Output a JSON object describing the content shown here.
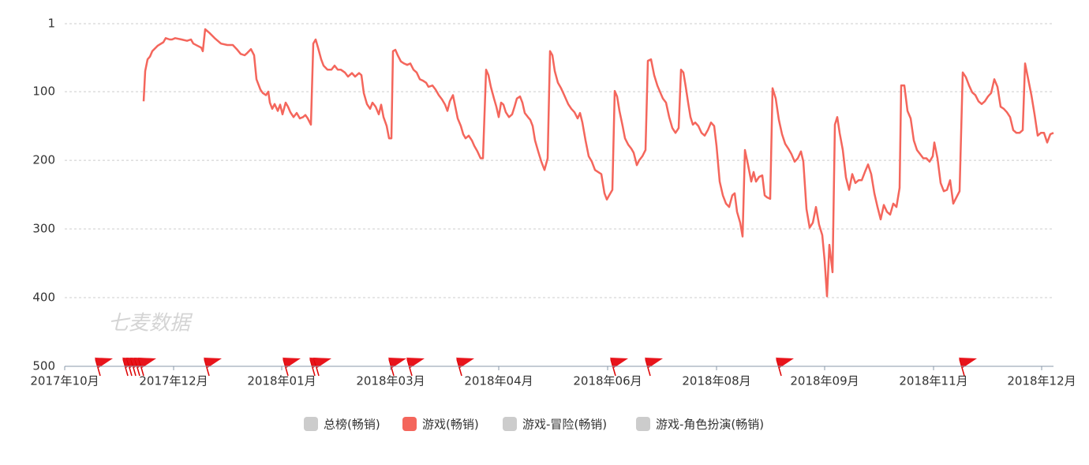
{
  "chart_data": {
    "type": "line",
    "watermark": "七麦数据",
    "y_inverted": true,
    "ylim": [
      1,
      500
    ],
    "yticks": [
      1,
      100,
      200,
      300,
      400,
      500
    ],
    "xlim": [
      0,
      1253
    ],
    "xticks": [
      {
        "value": 0,
        "label": "2017年10月"
      },
      {
        "value": 138,
        "label": "2017年12月"
      },
      {
        "value": 275,
        "label": "2018年01月"
      },
      {
        "value": 413,
        "label": "2018年03月"
      },
      {
        "value": 550,
        "label": "2018年04月"
      },
      {
        "value": 688,
        "label": "2018年06月"
      },
      {
        "value": 826,
        "label": "2018年08月"
      },
      {
        "value": 963,
        "label": "2018年09月"
      },
      {
        "value": 1101,
        "label": "2018年11月"
      },
      {
        "value": 1238,
        "label": "2018年12月"
      }
    ],
    "grid": true,
    "legend": "bottom",
    "x": [
      100,
      102,
      105,
      108,
      111,
      118,
      125,
      128,
      133,
      136,
      140,
      148,
      155,
      160,
      163,
      168,
      173,
      175,
      178,
      183,
      190,
      198,
      206,
      213,
      218,
      223,
      228,
      231,
      236,
      240,
      243,
      248,
      251,
      255,
      258,
      260,
      263,
      266,
      270,
      273,
      276,
      280,
      283,
      286,
      290,
      294,
      298,
      302,
      305,
      308,
      312,
      315,
      318,
      321,
      325,
      328,
      333,
      338,
      342,
      346,
      350,
      355,
      359,
      364,
      368,
      373,
      376,
      379,
      383,
      387,
      390,
      394,
      398,
      401,
      404,
      408,
      411,
      414,
      416,
      419,
      422,
      426,
      430,
      434,
      438,
      442,
      446,
      450,
      454,
      458,
      461,
      466,
      470,
      474,
      478,
      482,
      485,
      488,
      492,
      495,
      498,
      502,
      505,
      508,
      512,
      516,
      519,
      523,
      527,
      530,
      534,
      537,
      540,
      544,
      547,
      550,
      553,
      556,
      559,
      563,
      567,
      570,
      573,
      577,
      580,
      583,
      587,
      590,
      593,
      596,
      600,
      604,
      608,
      612,
      615,
      618,
      621,
      625,
      629,
      633,
      638,
      642,
      646,
      650,
      653,
      656,
      660,
      664,
      668,
      672,
      676,
      680,
      684,
      687,
      690,
      694,
      697,
      700,
      703,
      707,
      710,
      714,
      718,
      721,
      725,
      728,
      732,
      736,
      739,
      743,
      747,
      751,
      755,
      758,
      762,
      766,
      770,
      774,
      778,
      781,
      784,
      787,
      790,
      793,
      796,
      799,
      803,
      807,
      811,
      815,
      819,
      823,
      826,
      830,
      834,
      838,
      842,
      846,
      849,
      852,
      856,
      859,
      862,
      866,
      870,
      873,
      876,
      880,
      884,
      887,
      890,
      894,
      897,
      901,
      905,
      909,
      913,
      917,
      921,
      925,
      929,
      933,
      936,
      940,
      944,
      948,
      952,
      956,
      960,
      963,
      966,
      969,
      973,
      976,
      979,
      982,
      986,
      990,
      994,
      998,
      1002,
      1006,
      1010,
      1014,
      1018,
      1022,
      1026,
      1030,
      1034,
      1038,
      1042,
      1046,
      1050,
      1054,
      1058,
      1060,
      1064,
      1068,
      1072,
      1076,
      1080,
      1084,
      1088,
      1092,
      1096,
      1100,
      1102,
      1106,
      1110,
      1114,
      1118,
      1122,
      1126,
      1130,
      1134,
      1138,
      1142,
      1146,
      1150,
      1154,
      1158,
      1162,
      1166,
      1170,
      1174,
      1178,
      1182,
      1186,
      1190,
      1194,
      1198,
      1202,
      1206,
      1210,
      1214,
      1217,
      1221,
      1225,
      1229,
      1233,
      1237,
      1241,
      1245,
      1249,
      1253
    ],
    "series": [
      {
        "name": "总榜(畅销)",
        "color": "#cccccc",
        "visible": false
      },
      {
        "name": "游戏(畅销)",
        "color": "#f4665c",
        "visible": true,
        "values": [
          114,
          70,
          53,
          49,
          41,
          33,
          28,
          22,
          24,
          24,
          22,
          24,
          26,
          24,
          30,
          33,
          36,
          41,
          9,
          14,
          22,
          30,
          32,
          32,
          38,
          45,
          47,
          44,
          38,
          47,
          82,
          97,
          102,
          105,
          100,
          116,
          125,
          118,
          128,
          119,
          133,
          116,
          122,
          130,
          137,
          131,
          139,
          137,
          134,
          139,
          148,
          30,
          24,
          36,
          53,
          62,
          68,
          68,
          62,
          68,
          68,
          72,
          78,
          73,
          78,
          73,
          76,
          102,
          118,
          125,
          116,
          122,
          133,
          119,
          137,
          150,
          168,
          168,
          41,
          39,
          47,
          56,
          59,
          61,
          59,
          68,
          72,
          82,
          84,
          87,
          93,
          91,
          97,
          105,
          111,
          119,
          128,
          114,
          105,
          122,
          139,
          150,
          162,
          168,
          164,
          171,
          179,
          187,
          197,
          197,
          68,
          76,
          93,
          110,
          122,
          137,
          116,
          119,
          130,
          137,
          133,
          122,
          110,
          107,
          116,
          131,
          137,
          141,
          150,
          171,
          187,
          202,
          214,
          197,
          41,
          47,
          70,
          87,
          95,
          105,
          118,
          125,
          130,
          139,
          131,
          145,
          171,
          194,
          202,
          214,
          217,
          220,
          248,
          257,
          251,
          243,
          99,
          107,
          128,
          150,
          168,
          177,
          183,
          189,
          207,
          200,
          194,
          185,
          55,
          53,
          76,
          91,
          102,
          110,
          116,
          137,
          153,
          160,
          153,
          68,
          72,
          93,
          116,
          137,
          148,
          145,
          150,
          160,
          164,
          156,
          145,
          150,
          179,
          231,
          251,
          263,
          268,
          251,
          248,
          275,
          291,
          311,
          185,
          207,
          231,
          217,
          231,
          224,
          222,
          251,
          254,
          256,
          95,
          110,
          141,
          162,
          176,
          183,
          191,
          202,
          197,
          187,
          202,
          271,
          298,
          291,
          268,
          294,
          309,
          346,
          398,
          323,
          363,
          148,
          137,
          160,
          185,
          225,
          243,
          220,
          233,
          229,
          229,
          217,
          206,
          220,
          248,
          268,
          286,
          265,
          275,
          279,
          263,
          268,
          240,
          91,
          91,
          128,
          139,
          171,
          185,
          191,
          197,
          197,
          202,
          194,
          174,
          197,
          233,
          245,
          243,
          229,
          263,
          254,
          245,
          72,
          79,
          91,
          101,
          105,
          114,
          118,
          114,
          107,
          102,
          82,
          93,
          122,
          125,
          130,
          137,
          156,
          160,
          160,
          156,
          59,
          82,
          105,
          133,
          164,
          160,
          160,
          174,
          162,
          160
        ]
      },
      {
        "name": "游戏-冒险(畅销)",
        "color": "#cccccc",
        "visible": false
      },
      {
        "name": "游戏-角色扮演(畅销)",
        "color": "#cccccc",
        "visible": false
      }
    ]
  }
}
